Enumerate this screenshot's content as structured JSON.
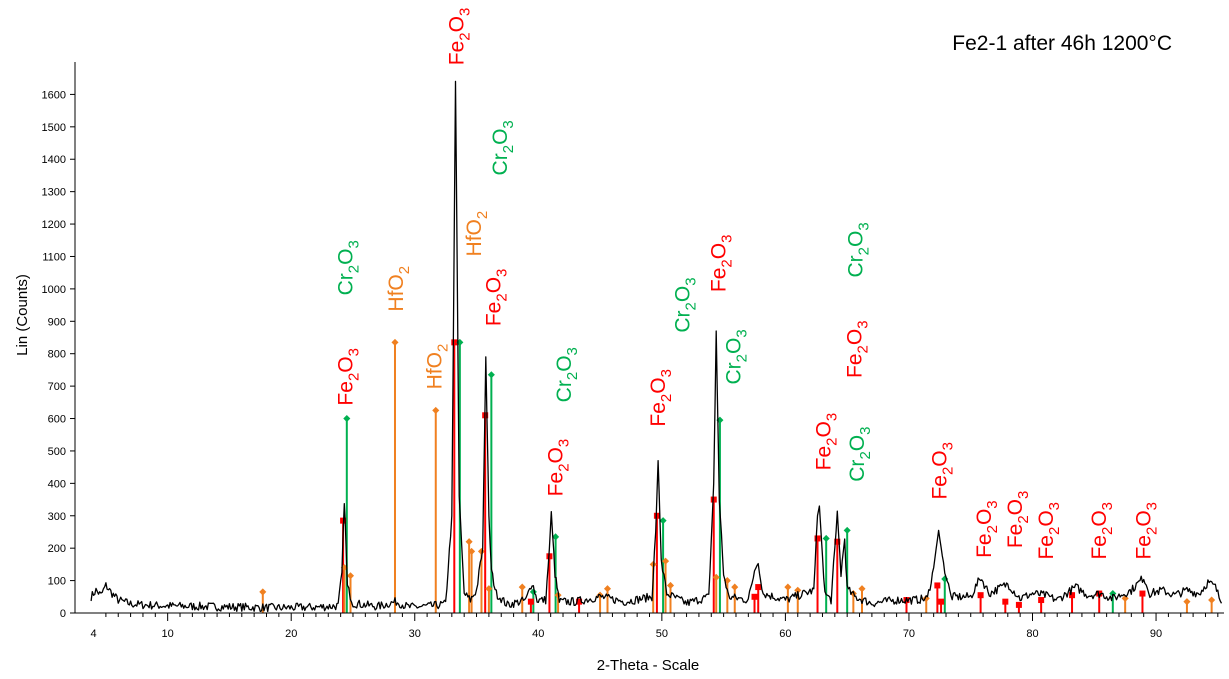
{
  "chart_data": {
    "type": "line",
    "title": "Fe2-1 after 46h 1200°C",
    "xlabel": "2-Theta - Scale",
    "ylabel": "Lin (Counts)",
    "xlim": [
      2.5,
      95.5
    ],
    "ylim": [
      0,
      1700
    ],
    "xticks": [
      4,
      10,
      20,
      30,
      40,
      50,
      60,
      70,
      80,
      90
    ],
    "yticks": [
      0,
      100,
      200,
      300,
      400,
      500,
      600,
      700,
      800,
      900,
      1000,
      1100,
      1200,
      1300,
      1400,
      1500,
      1600
    ],
    "grid": false,
    "line_color": "#000000",
    "phase_colors": {
      "Fe2O3": "#ff0000",
      "Cr2O3": "#00b050",
      "HfO2": "#f08020"
    },
    "phase_names": {
      "Fe2O3": [
        "Fe",
        "2",
        "O",
        "3"
      ],
      "Cr2O3": [
        "Cr",
        "2",
        "O",
        "3"
      ],
      "HfO2": [
        "HfO",
        "2"
      ]
    },
    "series": [
      {
        "values": [
          [
            3.8,
            50
          ],
          [
            4.2,
            70
          ],
          [
            4.6,
            55
          ],
          [
            5.0,
            85
          ],
          [
            5.5,
            60
          ],
          [
            6.0,
            40
          ],
          [
            7.0,
            28
          ],
          [
            8.0,
            25
          ],
          [
            10.0,
            22
          ],
          [
            13.0,
            20
          ],
          [
            16.0,
            18
          ],
          [
            19.0,
            16
          ],
          [
            22.0,
            18
          ],
          [
            23.8,
            22
          ],
          [
            24.1,
            120
          ],
          [
            24.3,
            350
          ],
          [
            24.55,
            80
          ],
          [
            25.0,
            30
          ],
          [
            27.0,
            20
          ],
          [
            28.5,
            35
          ],
          [
            29.5,
            18
          ],
          [
            31.5,
            22
          ],
          [
            32.5,
            28
          ],
          [
            33.0,
            300
          ],
          [
            33.3,
            1640
          ],
          [
            33.6,
            350
          ],
          [
            34.0,
            60
          ],
          [
            34.5,
            40
          ],
          [
            35.0,
            70
          ],
          [
            35.5,
            200
          ],
          [
            35.75,
            790
          ],
          [
            36.0,
            300
          ],
          [
            36.2,
            130
          ],
          [
            36.6,
            60
          ],
          [
            37.5,
            25
          ],
          [
            39.0,
            40
          ],
          [
            39.5,
            95
          ],
          [
            39.9,
            40
          ],
          [
            40.6,
            40
          ],
          [
            40.9,
            200
          ],
          [
            41.05,
            305
          ],
          [
            41.35,
            120
          ],
          [
            41.7,
            35
          ],
          [
            43.0,
            35
          ],
          [
            45.0,
            50
          ],
          [
            47.0,
            35
          ],
          [
            49.2,
            50
          ],
          [
            49.5,
            250
          ],
          [
            49.7,
            470
          ],
          [
            49.95,
            160
          ],
          [
            50.4,
            60
          ],
          [
            52.0,
            30
          ],
          [
            53.8,
            50
          ],
          [
            54.2,
            400
          ],
          [
            54.4,
            870
          ],
          [
            54.65,
            350
          ],
          [
            55.0,
            120
          ],
          [
            55.4,
            50
          ],
          [
            57.0,
            40
          ],
          [
            57.5,
            130
          ],
          [
            57.8,
            155
          ],
          [
            58.2,
            60
          ],
          [
            60.0,
            40
          ],
          [
            62.3,
            70
          ],
          [
            62.6,
            300
          ],
          [
            62.75,
            330
          ],
          [
            63.0,
            180
          ],
          [
            63.2,
            60
          ],
          [
            63.7,
            40
          ],
          [
            64.0,
            200
          ],
          [
            64.2,
            305
          ],
          [
            64.5,
            120
          ],
          [
            64.8,
            230
          ],
          [
            65.0,
            75
          ],
          [
            65.6,
            50
          ],
          [
            67.0,
            30
          ],
          [
            69.0,
            40
          ],
          [
            70.5,
            40
          ],
          [
            71.5,
            45
          ],
          [
            72.0,
            140
          ],
          [
            72.4,
            255
          ],
          [
            72.8,
            150
          ],
          [
            73.4,
            50
          ],
          [
            75.0,
            50
          ],
          [
            75.8,
            110
          ],
          [
            76.5,
            60
          ],
          [
            78.0,
            90
          ],
          [
            79.0,
            45
          ],
          [
            80.0,
            60
          ],
          [
            81.0,
            55
          ],
          [
            82.0,
            40
          ],
          [
            83.5,
            80
          ],
          [
            84.5,
            55
          ],
          [
            85.5,
            60
          ],
          [
            86.5,
            45
          ],
          [
            88.0,
            70
          ],
          [
            89.0,
            110
          ],
          [
            89.5,
            60
          ],
          [
            90.5,
            70
          ],
          [
            91.5,
            55
          ],
          [
            92.5,
            70
          ],
          [
            93.5,
            60
          ],
          [
            94.2,
            95
          ],
          [
            94.8,
            80
          ],
          [
            95.3,
            30
          ]
        ]
      }
    ],
    "reference_sticks": [
      {
        "phase": "Cr2O3",
        "x": 24.5,
        "y": 600
      },
      {
        "phase": "Fe2O3",
        "x": 24.2,
        "y": 285
      },
      {
        "phase": "HfO2",
        "x": 24.3,
        "y": 140
      },
      {
        "phase": "HfO2",
        "x": 24.8,
        "y": 115
      },
      {
        "phase": "HfO2",
        "x": 17.7,
        "y": 65
      },
      {
        "phase": "HfO2",
        "x": 28.4,
        "y": 835
      },
      {
        "phase": "HfO2",
        "x": 31.7,
        "y": 625
      },
      {
        "phase": "Fe2O3",
        "x": 33.2,
        "y": 835
      },
      {
        "phase": "Cr2O3",
        "x": 33.65,
        "y": 835
      },
      {
        "phase": "HfO2",
        "x": 34.4,
        "y": 220
      },
      {
        "phase": "HfO2",
        "x": 34.6,
        "y": 190
      },
      {
        "phase": "HfO2",
        "x": 35.4,
        "y": 190
      },
      {
        "phase": "Fe2O3",
        "x": 35.7,
        "y": 610
      },
      {
        "phase": "Cr2O3",
        "x": 36.2,
        "y": 735
      },
      {
        "phase": "HfO2",
        "x": 36.0,
        "y": 75
      },
      {
        "phase": "HfO2",
        "x": 38.7,
        "y": 80
      },
      {
        "phase": "Cr2O3",
        "x": 39.6,
        "y": 65
      },
      {
        "phase": "Fe2O3",
        "x": 39.4,
        "y": 35
      },
      {
        "phase": "Fe2O3",
        "x": 40.9,
        "y": 175
      },
      {
        "phase": "Cr2O3",
        "x": 41.4,
        "y": 235
      },
      {
        "phase": "HfO2",
        "x": 41.6,
        "y": 55
      },
      {
        "phase": "Fe2O3",
        "x": 43.3,
        "y": 35
      },
      {
        "phase": "HfO2",
        "x": 45.0,
        "y": 55
      },
      {
        "phase": "HfO2",
        "x": 45.6,
        "y": 75
      },
      {
        "phase": "Fe2O3",
        "x": 49.6,
        "y": 300
      },
      {
        "phase": "Cr2O3",
        "x": 50.1,
        "y": 285
      },
      {
        "phase": "HfO2",
        "x": 49.3,
        "y": 150
      },
      {
        "phase": "HfO2",
        "x": 50.3,
        "y": 160
      },
      {
        "phase": "HfO2",
        "x": 50.7,
        "y": 85
      },
      {
        "phase": "Fe2O3",
        "x": 54.2,
        "y": 350
      },
      {
        "phase": "Cr2O3",
        "x": 54.7,
        "y": 595
      },
      {
        "phase": "HfO2",
        "x": 54.4,
        "y": 110
      },
      {
        "phase": "HfO2",
        "x": 55.3,
        "y": 100
      },
      {
        "phase": "HfO2",
        "x": 55.9,
        "y": 80
      },
      {
        "phase": "Fe2O3",
        "x": 57.5,
        "y": 50
      },
      {
        "phase": "Fe2O3",
        "x": 57.8,
        "y": 80
      },
      {
        "phase": "HfO2",
        "x": 60.2,
        "y": 80
      },
      {
        "phase": "HfO2",
        "x": 61.0,
        "y": 70
      },
      {
        "phase": "Fe2O3",
        "x": 62.6,
        "y": 230
      },
      {
        "phase": "Cr2O3",
        "x": 63.3,
        "y": 230
      },
      {
        "phase": "Fe2O3",
        "x": 64.2,
        "y": 220
      },
      {
        "phase": "Cr2O3",
        "x": 65.0,
        "y": 255
      },
      {
        "phase": "HfO2",
        "x": 65.5,
        "y": 60
      },
      {
        "phase": "HfO2",
        "x": 66.2,
        "y": 75
      },
      {
        "phase": "Fe2O3",
        "x": 69.8,
        "y": 40
      },
      {
        "phase": "Fe2O3",
        "x": 72.3,
        "y": 85
      },
      {
        "phase": "Cr2O3",
        "x": 72.9,
        "y": 105
      },
      {
        "phase": "Fe2O3",
        "x": 72.6,
        "y": 35
      },
      {
        "phase": "HfO2",
        "x": 71.4,
        "y": 45
      },
      {
        "phase": "Fe2O3",
        "x": 75.8,
        "y": 55
      },
      {
        "phase": "Fe2O3",
        "x": 77.8,
        "y": 35
      },
      {
        "phase": "Fe2O3",
        "x": 78.9,
        "y": 25
      },
      {
        "phase": "Fe2O3",
        "x": 80.7,
        "y": 40
      },
      {
        "phase": "Fe2O3",
        "x": 83.2,
        "y": 55
      },
      {
        "phase": "Fe2O3",
        "x": 85.4,
        "y": 60
      },
      {
        "phase": "Cr2O3",
        "x": 86.5,
        "y": 60
      },
      {
        "phase": "Fe2O3",
        "x": 88.9,
        "y": 60
      },
      {
        "phase": "HfO2",
        "x": 87.5,
        "y": 45
      },
      {
        "phase": "HfO2",
        "x": 92.5,
        "y": 35
      },
      {
        "phase": "HfO2",
        "x": 94.5,
        "y": 40
      }
    ],
    "annotations": [
      {
        "phase": "Fe2O3",
        "x": 33.3,
        "y": 1690
      },
      {
        "phase": "Cr2O3",
        "x": 24.3,
        "y": 980
      },
      {
        "phase": "Fe2O3",
        "x": 24.3,
        "y": 640
      },
      {
        "phase": "HfO2",
        "x": 28.4,
        "y": 930
      },
      {
        "phase": "HfO2",
        "x": 31.5,
        "y": 690
      },
      {
        "phase": "HfO2",
        "x": 34.7,
        "y": 1100
      },
      {
        "phase": "Cr2O3",
        "x": 36.8,
        "y": 1350
      },
      {
        "phase": "Fe2O3",
        "x": 36.3,
        "y": 885
      },
      {
        "phase": "Cr2O3",
        "x": 42.0,
        "y": 650
      },
      {
        "phase": "Fe2O3",
        "x": 41.3,
        "y": 360
      },
      {
        "phase": "Fe2O3",
        "x": 49.6,
        "y": 575
      },
      {
        "phase": "Cr2O3",
        "x": 51.6,
        "y": 865
      },
      {
        "phase": "Fe2O3",
        "x": 54.5,
        "y": 990
      },
      {
        "phase": "Cr2O3",
        "x": 55.7,
        "y": 705
      },
      {
        "phase": "Fe2O3",
        "x": 63.0,
        "y": 440
      },
      {
        "phase": "Cr2O3",
        "x": 65.6,
        "y": 1035
      },
      {
        "phase": "Fe2O3",
        "x": 65.5,
        "y": 725
      },
      {
        "phase": "Cr2O3",
        "x": 65.7,
        "y": 405
      },
      {
        "phase": "Fe2O3",
        "x": 72.4,
        "y": 350
      },
      {
        "phase": "Fe2O3",
        "x": 76.0,
        "y": 170
      },
      {
        "phase": "Fe2O3",
        "x": 78.5,
        "y": 200
      },
      {
        "phase": "Fe2O3",
        "x": 81.0,
        "y": 165
      },
      {
        "phase": "Fe2O3",
        "x": 85.3,
        "y": 165
      },
      {
        "phase": "Fe2O3",
        "x": 88.9,
        "y": 165
      }
    ]
  }
}
